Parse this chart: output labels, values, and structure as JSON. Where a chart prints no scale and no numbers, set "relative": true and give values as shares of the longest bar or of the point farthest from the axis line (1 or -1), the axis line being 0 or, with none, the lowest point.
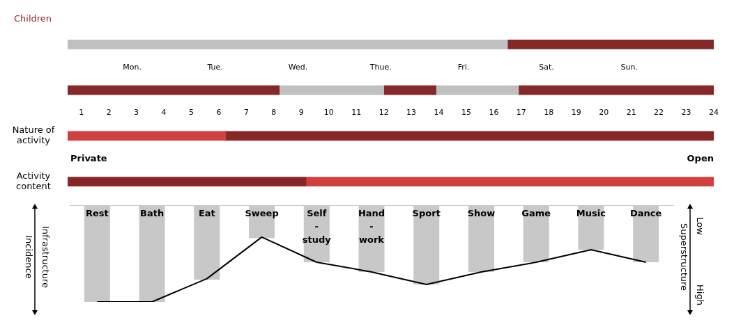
{
  "chart_data": [
    {
      "type": "bar",
      "orientation": "horizontal",
      "title": "Children",
      "categories": [
        null,
        null,
        "Nature of\nactivity",
        "Activity\ncontent"
      ],
      "xlim": [
        0.5,
        24
      ],
      "xticks": [
        1,
        2,
        3,
        4,
        5,
        6,
        7,
        8,
        9,
        10,
        11,
        12,
        13,
        14,
        15,
        16,
        17,
        18,
        19,
        20,
        21,
        22,
        23,
        24
      ],
      "series": [
        {
          "base": [
            0.5,
            0.5,
            0.5,
            0.5
          ],
          "values": [
            16,
            7.7,
            5.75,
            8.67
          ],
          "colors": [
            "#c0c0c0",
            "#862828",
            "#d04040",
            "#862828"
          ]
        },
        {
          "base": [
            16.5,
            8.2,
            6.25,
            9.17
          ],
          "values": [
            7.5,
            3.8,
            17.75,
            14.83
          ],
          "colors": [
            "#862828",
            "#c0c0c0",
            "#862828",
            "#d04040"
          ]
        },
        {
          "base": [
            null,
            12,
            null,
            null
          ],
          "values": [
            null,
            1.9,
            null,
            null
          ],
          "colors": [
            null,
            "#862828",
            null,
            null
          ]
        },
        {
          "base": [
            null,
            13.9,
            null,
            null
          ],
          "values": [
            null,
            3,
            null,
            null
          ],
          "colors": [
            null,
            "#c0c0c0",
            null,
            null
          ]
        },
        {
          "base": [
            null,
            16.9,
            null,
            null
          ],
          "values": [
            null,
            7.1,
            null,
            null
          ],
          "colors": [
            null,
            "#862828",
            null,
            null
          ]
        }
      ],
      "annotations": [
        "Private",
        "Open",
        "Mon.",
        "Tue.",
        "Wed.",
        "Thue.",
        "Fri.",
        "Sat.",
        "Sun."
      ]
    },
    {
      "type": "bar",
      "relative": true,
      "categories": [
        "Rest",
        "Bath",
        "Eat",
        "Sweep",
        "Self\n-\nstudy",
        "Hand\n-\nwork",
        "Sport",
        "Show",
        "Game",
        "Music",
        "Dance"
      ],
      "ylabel": "Infrastructure\nIncidence",
      "y2label": "Superstructure",
      "series": [
        {
          "color": "#c8c8c8",
          "values": [
            -1,
            -1,
            -0.77,
            -0.34,
            -0.59,
            -0.69,
            -0.82,
            -0.69,
            -0.59,
            -0.46,
            -0.59
          ]
        },
        {
          "type": "line",
          "color": "#000000",
          "marker": "none",
          "values": [
            -1,
            -1,
            -0.76,
            -0.33,
            -0.59,
            -0.69,
            -0.82,
            -0.69,
            -0.59,
            -0.46,
            -0.59
          ]
        }
      ],
      "annotations": [
        "Low",
        "High"
      ]
    }
  ]
}
